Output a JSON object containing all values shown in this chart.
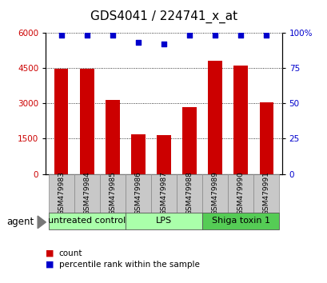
{
  "title": "GDS4041 / 224741_x_at",
  "samples": [
    "GSM479983",
    "GSM479984",
    "GSM479985",
    "GSM479986",
    "GSM479987",
    "GSM479988",
    "GSM479989",
    "GSM479990",
    "GSM479991"
  ],
  "counts": [
    4450,
    4480,
    3150,
    1700,
    1650,
    2850,
    4800,
    4600,
    3050
  ],
  "percentiles": [
    98,
    98,
    98,
    93,
    92,
    98,
    98,
    98,
    98
  ],
  "bar_color": "#cc0000",
  "dot_color": "#0000cc",
  "left_ylim": [
    0,
    6000
  ],
  "right_ylim": [
    0,
    100
  ],
  "left_yticks": [
    0,
    1500,
    3000,
    4500,
    6000
  ],
  "right_yticks": [
    0,
    25,
    50,
    75,
    100
  ],
  "right_yticklabels": [
    "0",
    "25",
    "50",
    "75",
    "100%"
  ],
  "groups": [
    {
      "label": "untreated control",
      "start": 0,
      "end": 3
    },
    {
      "label": "LPS",
      "start": 3,
      "end": 6
    },
    {
      "label": "Shiga toxin 1",
      "start": 6,
      "end": 9
    }
  ],
  "group_color_light": "#aaffaa",
  "group_color_dark": "#55cc55",
  "agent_label": "agent",
  "legend_count_label": "count",
  "legend_pct_label": "percentile rank within the sample",
  "bar_color_sample_box": "#c8c8c8",
  "bar_width": 0.55,
  "title_fontsize": 11,
  "tick_fontsize": 7.5,
  "sample_fontsize": 6.5,
  "group_fontsize": 8,
  "legend_fontsize": 7.5,
  "agent_fontsize": 8.5
}
